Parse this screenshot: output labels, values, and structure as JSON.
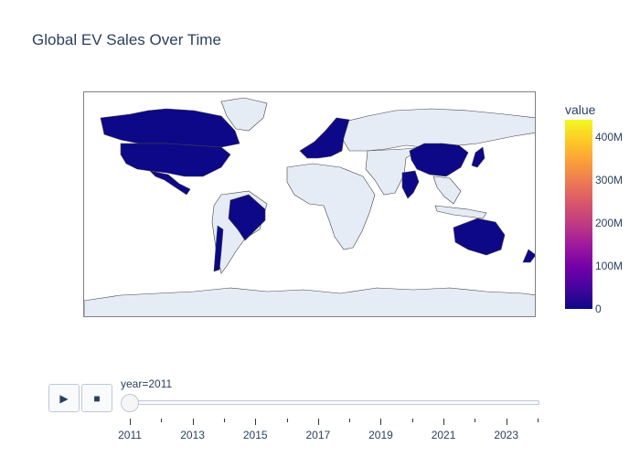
{
  "chart_data": {
    "type": "choropleth",
    "title": "Global EV Sales Over Time",
    "colorbar": {
      "title": "value",
      "range": [
        0,
        440000000
      ],
      "tick_labels": [
        "0",
        "100M",
        "200M",
        "300M",
        "400M"
      ],
      "tick_values": [
        0,
        100000000,
        200000000,
        300000000,
        400000000
      ],
      "colorscale": [
        "#0d0887",
        "#46039f",
        "#7201a8",
        "#9c179e",
        "#bd3786",
        "#d8576b",
        "#ed7953",
        "#fb9f3a",
        "#fdca26",
        "#f0f921"
      ]
    },
    "current_frame": "year=2011",
    "colored_regions": [
      "USA",
      "Canada",
      "Mexico",
      "Brazil",
      "Chile",
      "Europe",
      "China",
      "India",
      "Japan",
      "Australia",
      "New Zealand"
    ],
    "slider": {
      "years": [
        2011,
        2012,
        2013,
        2014,
        2015,
        2016,
        2017,
        2018,
        2019,
        2020,
        2021,
        2022,
        2023,
        2024
      ],
      "labeled_years": [
        2011,
        2013,
        2015,
        2017,
        2019,
        2021,
        2023
      ],
      "current": 2011
    }
  },
  "controls": {
    "play": "▶",
    "stop": "■"
  }
}
